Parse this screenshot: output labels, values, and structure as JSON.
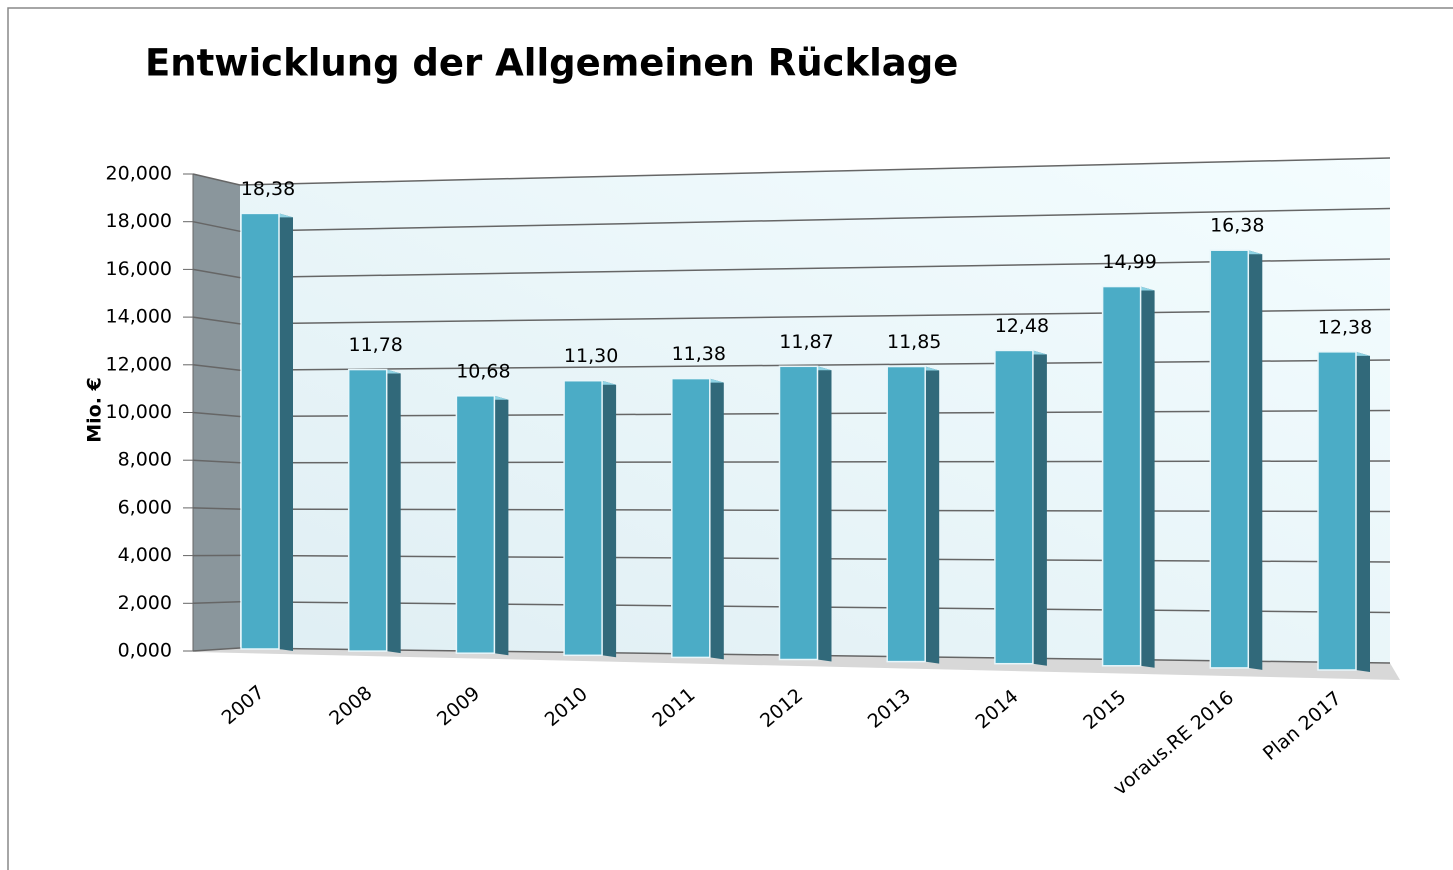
{
  "chart_data": {
    "type": "bar3d",
    "title": "Entwicklung der Allgemeinen Rücklage",
    "y_axis_label": "Mio. €",
    "categories": [
      "2007",
      "2008",
      "2009",
      "2010",
      "2011",
      "2012",
      "2013",
      "2014",
      "2015",
      "voraus.RE 2016",
      "Plan 2017"
    ],
    "values": [
      18.38,
      11.78,
      10.68,
      11.3,
      11.38,
      11.87,
      11.85,
      12.48,
      14.99,
      16.38,
      12.38
    ],
    "value_labels": [
      "18,38",
      "11,78",
      "10,68",
      "11,30",
      "11,38",
      "11,87",
      "11,85",
      "12,48",
      "14,99",
      "16,38",
      "12,38"
    ],
    "color": "#4bacc6",
    "ylim": [
      0,
      20
    ],
    "yticks": [
      {
        "value": 0,
        "label": "0,000"
      },
      {
        "value": 2,
        "label": "2,000"
      },
      {
        "value": 4,
        "label": "4,000"
      },
      {
        "value": 6,
        "label": "6,000"
      },
      {
        "value": 8,
        "label": "8,000"
      },
      {
        "value": 10,
        "label": "10,000"
      },
      {
        "value": 12,
        "label": "12,000"
      },
      {
        "value": 14,
        "label": "14,000"
      },
      {
        "value": 16,
        "label": "16,000"
      },
      {
        "value": 18,
        "label": "18,000"
      },
      {
        "value": 20,
        "label": "20,000"
      }
    ],
    "grid": true
  }
}
